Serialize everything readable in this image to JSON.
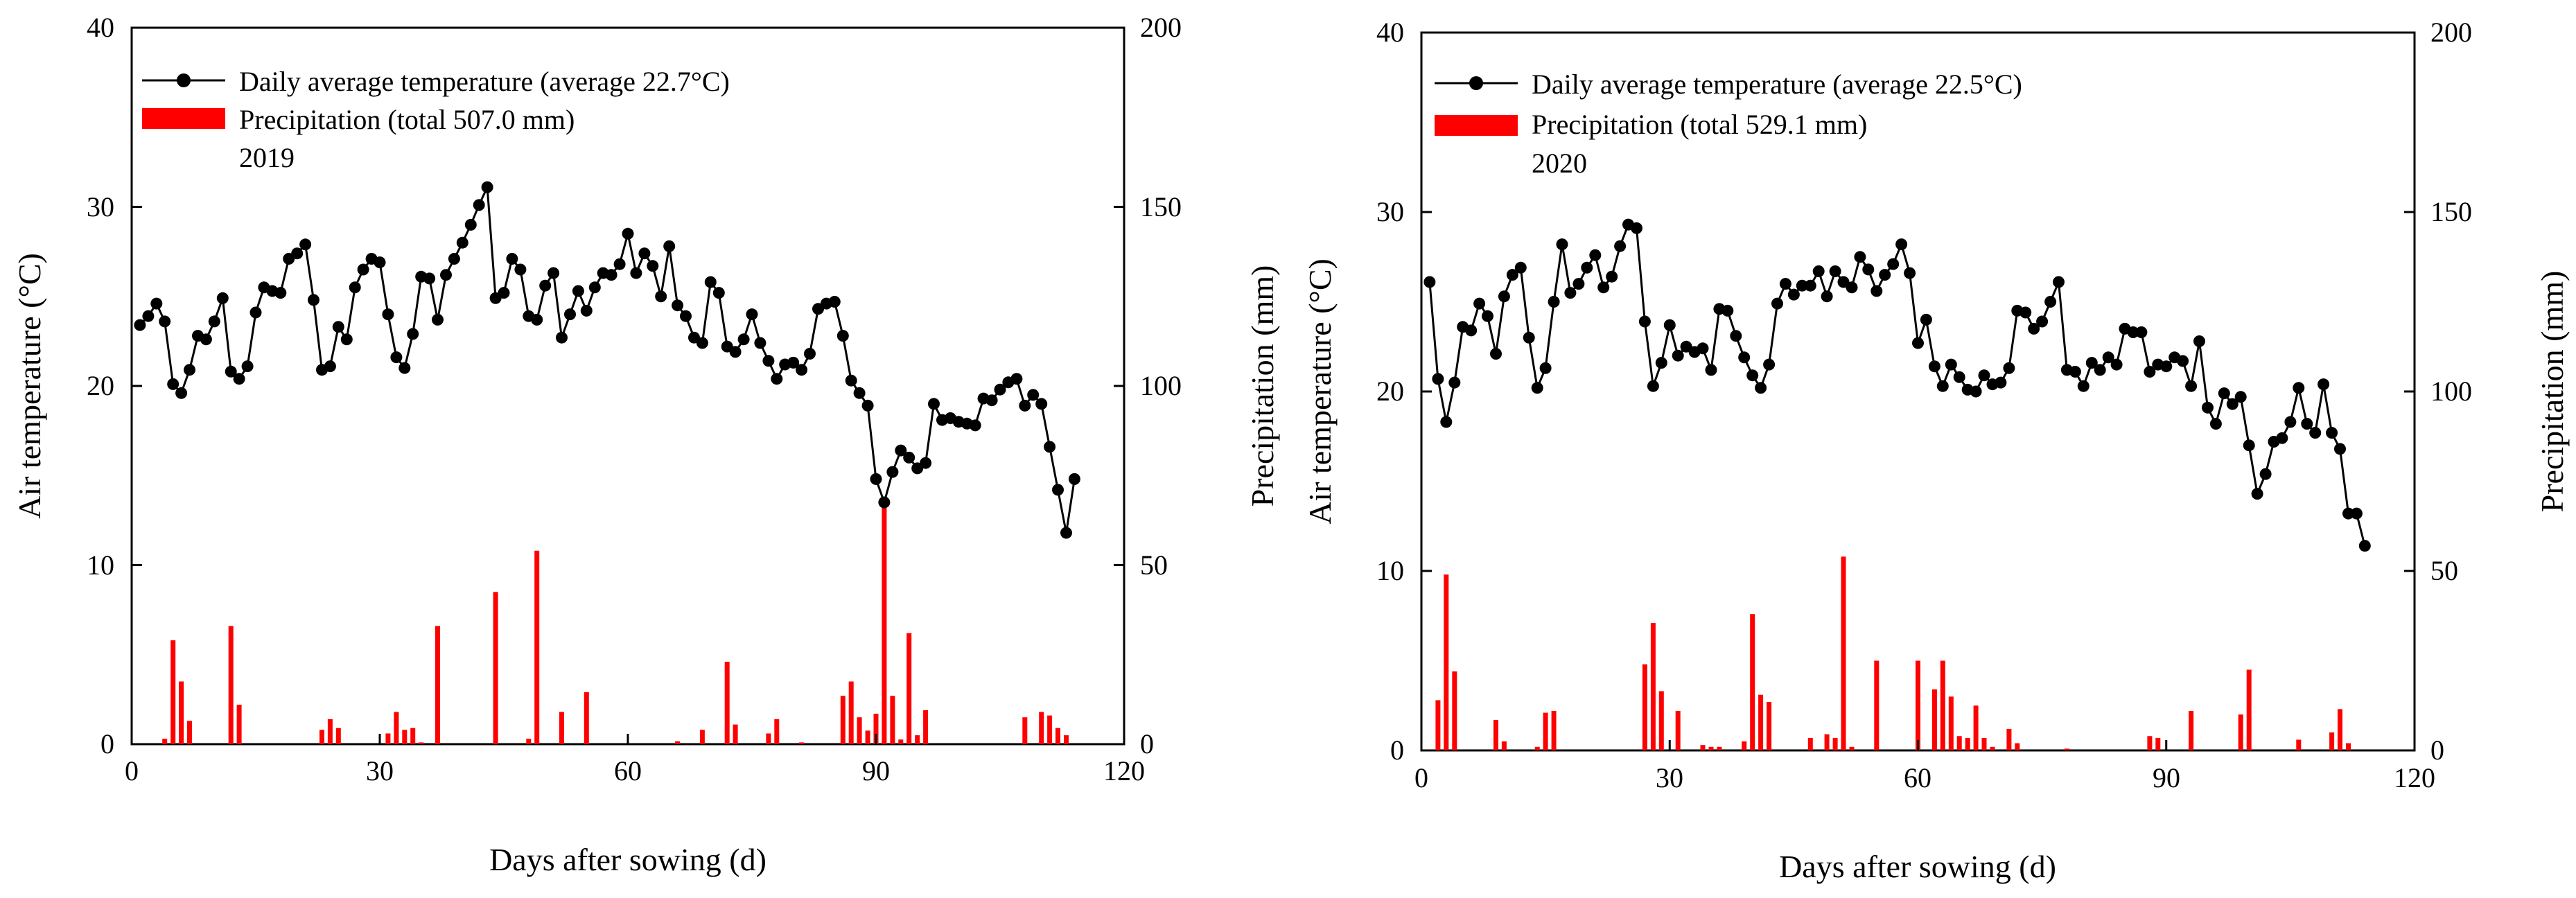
{
  "colors": {
    "temperature": "#000000",
    "precipitation": "#ff0000",
    "background": "#ffffff"
  },
  "chart_data": [
    {
      "type": "line+bar",
      "panel": "left",
      "year_label": "2019",
      "xlabel": "Days after sowing (d)",
      "ylabel_left": "Air temperature (°C)",
      "ylabel_right": "Precipitation (mm)",
      "xlim": [
        0,
        120
      ],
      "xticks": [
        "0",
        "30",
        "60",
        "90",
        "120"
      ],
      "ylim_left": [
        0,
        40
      ],
      "yticks_left": [
        "0",
        "10",
        "20",
        "30",
        "40"
      ],
      "ylim_right": [
        0,
        200
      ],
      "yticks_right": [
        "0",
        "50",
        "100",
        "150",
        "200"
      ],
      "legend": {
        "temperature": "Daily average temperature (average 22.7°C)",
        "precipitation": "Precipitation (total 507.0 mm)"
      },
      "temperature": {
        "x": [
          1,
          2,
          3,
          4,
          5,
          6,
          7,
          8,
          9,
          10,
          11,
          12,
          13,
          14,
          15,
          16,
          17,
          18,
          19,
          20,
          21,
          22,
          23,
          24,
          25,
          26,
          27,
          28,
          29,
          30,
          31,
          32,
          33,
          34,
          35,
          36,
          37,
          38,
          39,
          40,
          41,
          42,
          43,
          44,
          45,
          46,
          47,
          48,
          49,
          50,
          51,
          52,
          53,
          54,
          55,
          56,
          57,
          58,
          59,
          60,
          61,
          62,
          63,
          64,
          65,
          66,
          67,
          68,
          69,
          70,
          71,
          72,
          73,
          74,
          75,
          76,
          77,
          78,
          79,
          80,
          81,
          82,
          83,
          84,
          85,
          86,
          87,
          88,
          89,
          90,
          91,
          92,
          93,
          94,
          95,
          96,
          97,
          98,
          99,
          100,
          101,
          102,
          103,
          104,
          105,
          106,
          107,
          108,
          109,
          110,
          111,
          112,
          113,
          114
        ],
        "y": [
          23.4,
          23.9,
          24.6,
          23.6,
          20.1,
          19.6,
          20.9,
          22.8,
          22.6,
          23.6,
          24.9,
          20.8,
          20.4,
          21.1,
          24.1,
          25.5,
          25.3,
          25.2,
          27.1,
          27.4,
          27.9,
          24.8,
          20.9,
          21.1,
          23.3,
          22.6,
          25.5,
          26.5,
          27.1,
          26.9,
          24.0,
          21.6,
          21.0,
          22.9,
          26.1,
          26.0,
          23.7,
          26.2,
          27.1,
          28.0,
          29.0,
          30.1,
          31.1,
          24.9,
          25.2,
          27.1,
          26.5,
          23.9,
          23.7,
          25.6,
          26.3,
          22.7,
          24.0,
          25.3,
          24.2,
          25.5,
          26.3,
          26.2,
          26.8,
          28.5,
          26.3,
          27.4,
          26.7,
          25.0,
          27.8,
          24.5,
          23.9,
          22.7,
          22.4,
          25.8,
          25.2,
          22.2,
          21.9,
          22.6,
          24.0,
          22.4,
          21.4,
          20.4,
          21.2,
          21.3,
          20.9,
          21.8,
          24.3,
          24.6,
          24.7,
          22.8,
          20.3,
          19.6,
          18.9,
          14.8,
          13.5,
          15.2,
          16.4,
          16.0,
          15.4,
          15.7,
          19.0,
          18.1,
          18.2,
          18.0,
          17.9,
          17.8,
          19.3,
          19.2,
          19.8,
          20.2,
          20.4,
          18.9,
          19.5,
          19.0,
          16.6,
          14.2,
          11.8,
          14.8
        ]
      },
      "precipitation": {
        "x": [
          4,
          5,
          6,
          7,
          12,
          13,
          23,
          24,
          25,
          31,
          32,
          33,
          34,
          35,
          37,
          44,
          48,
          49,
          52,
          55,
          66,
          69,
          72,
          73,
          77,
          78,
          81,
          86,
          87,
          88,
          89,
          90,
          91,
          92,
          93,
          94,
          95,
          96,
          108,
          110,
          111,
          112,
          113
        ],
        "y": [
          1.5,
          29.0,
          17.5,
          6.5,
          33.0,
          11.0,
          4.0,
          7.0,
          4.5,
          3.0,
          9.0,
          4.0,
          4.5,
          0.5,
          33.0,
          42.5,
          1.5,
          54.0,
          9.0,
          14.5,
          0.8,
          4.0,
          23.0,
          5.5,
          3.0,
          7.0,
          0.5,
          13.5,
          17.5,
          7.5,
          3.8,
          8.5,
          67.0,
          13.5,
          1.3,
          31.0,
          2.5,
          9.5,
          7.5,
          9.0,
          8.0,
          4.5,
          2.5
        ]
      }
    },
    {
      "type": "line+bar",
      "panel": "right",
      "year_label": "2020",
      "xlabel": "Days after sowing (d)",
      "ylabel_left": "Air temperature (°C)",
      "ylabel_right": "Precipitation (mm)",
      "xlim": [
        0,
        120
      ],
      "xticks": [
        "0",
        "30",
        "60",
        "90",
        "120"
      ],
      "ylim_left": [
        0,
        40
      ],
      "yticks_left": [
        "0",
        "10",
        "20",
        "30",
        "40"
      ],
      "ylim_right": [
        0,
        200
      ],
      "yticks_right": [
        "0",
        "50",
        "100",
        "150",
        "200"
      ],
      "legend": {
        "temperature": "Daily average temperature (average 22.5°C)",
        "precipitation": "Precipitation (total 529.1 mm)"
      },
      "temperature": {
        "x": [
          1,
          2,
          3,
          4,
          5,
          6,
          7,
          8,
          9,
          10,
          11,
          12,
          13,
          14,
          15,
          16,
          17,
          18,
          19,
          20,
          21,
          22,
          23,
          24,
          25,
          26,
          27,
          28,
          29,
          30,
          31,
          32,
          33,
          34,
          35,
          36,
          37,
          38,
          39,
          40,
          41,
          42,
          43,
          44,
          45,
          46,
          47,
          48,
          49,
          50,
          51,
          52,
          53,
          54,
          55,
          56,
          57,
          58,
          59,
          60,
          61,
          62,
          63,
          64,
          65,
          66,
          67,
          68,
          69,
          70,
          71,
          72,
          73,
          74,
          75,
          76,
          77,
          78,
          79,
          80,
          81,
          82,
          83,
          84,
          85,
          86,
          87,
          88,
          89,
          90,
          91,
          92,
          93,
          94,
          95,
          96,
          97,
          98,
          99,
          100,
          101,
          102,
          103,
          104,
          105,
          106,
          107,
          108,
          109,
          110,
          111,
          112,
          113,
          114
        ],
        "y": [
          26.1,
          20.7,
          18.3,
          20.5,
          23.6,
          23.4,
          24.9,
          24.2,
          22.1,
          25.3,
          26.5,
          26.9,
          23.0,
          20.2,
          21.3,
          25.0,
          28.2,
          25.5,
          26.0,
          26.9,
          27.6,
          25.8,
          26.4,
          28.1,
          29.3,
          29.1,
          23.9,
          20.3,
          21.6,
          23.7,
          22.0,
          22.5,
          22.2,
          22.4,
          21.2,
          24.6,
          24.5,
          23.1,
          21.9,
          20.9,
          20.2,
          21.5,
          24.9,
          26.0,
          25.4,
          25.9,
          25.9,
          26.7,
          25.3,
          26.7,
          26.1,
          25.8,
          27.5,
          26.8,
          25.6,
          26.5,
          27.1,
          28.2,
          26.6,
          22.7,
          24.0,
          21.4,
          20.3,
          21.5,
          20.8,
          20.1,
          20.0,
          20.9,
          20.4,
          20.5,
          21.3,
          24.5,
          24.4,
          23.5,
          23.9,
          25.0,
          26.1,
          21.2,
          21.1,
          20.3,
          21.6,
          21.2,
          21.9,
          21.5,
          23.5,
          23.3,
          23.3,
          21.1,
          21.5,
          21.4,
          21.9,
          21.7,
          20.3,
          22.8,
          19.1,
          18.2,
          19.9,
          19.3,
          19.7,
          17.0,
          14.3,
          15.4,
          17.2,
          17.4,
          18.3,
          20.2,
          18.2,
          17.7,
          20.4,
          17.7,
          16.8,
          13.2,
          13.2,
          11.4
        ]
      },
      "precipitation": {
        "x": [
          2,
          3,
          4,
          9,
          10,
          14,
          15,
          16,
          27,
          28,
          29,
          31,
          34,
          35,
          36,
          39,
          40,
          41,
          42,
          47,
          49,
          50,
          51,
          52,
          55,
          60,
          62,
          63,
          64,
          65,
          66,
          67,
          68,
          69,
          71,
          72,
          78,
          88,
          89,
          93,
          99,
          100,
          106,
          110,
          111,
          112
        ],
        "y": [
          14.0,
          49.0,
          22.0,
          8.5,
          2.5,
          1.0,
          10.5,
          11.0,
          24.0,
          35.5,
          16.5,
          11.0,
          1.5,
          1.0,
          1.0,
          2.5,
          38.0,
          15.5,
          13.5,
          3.5,
          4.5,
          3.5,
          54.0,
          1.0,
          25.0,
          25.0,
          17.0,
          25.0,
          15.0,
          4.0,
          3.5,
          12.5,
          3.5,
          1.0,
          6.0,
          2.0,
          0.5,
          4.0,
          3.5,
          11.0,
          10.0,
          22.5,
          3.0,
          5.0,
          11.5,
          2.0
        ]
      }
    }
  ]
}
